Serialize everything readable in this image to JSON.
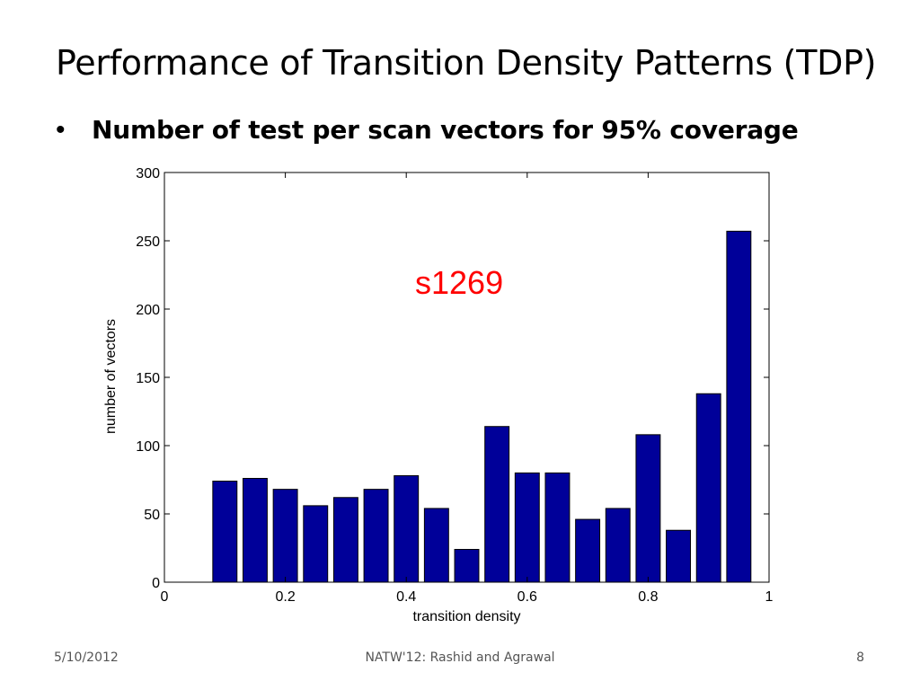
{
  "slide": {
    "title": "Performance of Transition Density Patterns (TDP)",
    "bullet": "Number of test per scan vectors for 95% coverage",
    "bullet_marker": "•"
  },
  "footer": {
    "date": "5/10/2012",
    "center": "NATW'12: Rashid and Agrawal",
    "page": "8"
  },
  "chart_data": {
    "type": "bar",
    "annotation": "s1269",
    "annotation_color": "#ff0000",
    "bar_color": "#000099",
    "xlabel": "transition density",
    "ylabel": "number of vectors",
    "xlim": [
      0,
      1
    ],
    "ylim": [
      0,
      300
    ],
    "xticks": [
      0,
      0.2,
      0.4,
      0.6,
      0.8,
      1
    ],
    "xtick_labels": [
      "0",
      "0.2",
      "0.4",
      "0.6",
      "0.8",
      "1"
    ],
    "yticks": [
      0,
      50,
      100,
      150,
      200,
      250,
      300
    ],
    "ytick_labels": [
      "0",
      "50",
      "100",
      "150",
      "200",
      "250",
      "300"
    ],
    "bar_width": 0.04,
    "x": [
      0.1,
      0.15,
      0.2,
      0.25,
      0.3,
      0.35,
      0.4,
      0.45,
      0.5,
      0.55,
      0.6,
      0.65,
      0.7,
      0.75,
      0.8,
      0.85,
      0.9,
      0.95
    ],
    "values": [
      74,
      76,
      68,
      56,
      62,
      68,
      78,
      54,
      24,
      114,
      80,
      80,
      46,
      54,
      108,
      38,
      138,
      257
    ],
    "grid": false
  }
}
